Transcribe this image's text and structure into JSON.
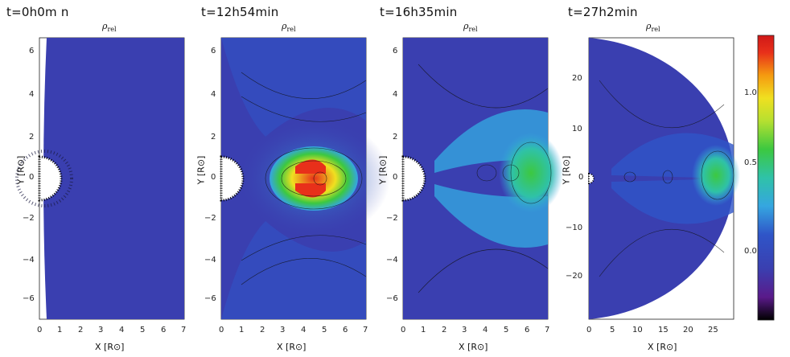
{
  "panels": [
    {
      "id": "p1",
      "time": "t=0h0m n",
      "title_symbol": "ρ",
      "title_sub": "rel",
      "xlabel": "X [R⊙]",
      "ylabel": "Y [R⊙]",
      "xticks": [
        "0",
        "1",
        "2",
        "3",
        "4",
        "5",
        "6",
        "7"
      ],
      "yticks": [
        "6",
        "4",
        "2",
        "0",
        "−2",
        "−4",
        "−6"
      ]
    },
    {
      "id": "p2",
      "time": "t=12h54min",
      "title_symbol": "ρ",
      "title_sub": "rel",
      "xlabel": "X [R⊙]",
      "ylabel": "Y [R⊙]",
      "xticks": [
        "0",
        "1",
        "2",
        "3",
        "4",
        "5",
        "6",
        "7"
      ],
      "yticks": [
        "6",
        "4",
        "2",
        "0",
        "−2",
        "−4",
        "−6"
      ]
    },
    {
      "id": "p3",
      "time": "t=16h35min",
      "title_symbol": "ρ",
      "title_sub": "rel",
      "xlabel": "X [R⊙]",
      "ylabel": "Y [R⊙]",
      "xticks": [
        "0",
        "1",
        "2",
        "3",
        "4",
        "5",
        "6",
        "7"
      ],
      "yticks": [
        "6",
        "4",
        "2",
        "0",
        "−2",
        "−4",
        "−6"
      ]
    },
    {
      "id": "p4",
      "time": "t=27h2min",
      "title_symbol": "ρ",
      "title_sub": "rel",
      "xlabel": "X [R⊙]",
      "ylabel": "Y [R⊙]",
      "xticks": [
        "0",
        "5",
        "10",
        "15",
        "20",
        "25"
      ],
      "yticks": [
        "20",
        "10",
        "0",
        "−10",
        "−20"
      ]
    }
  ],
  "colorbar": {
    "ticks": [
      "1.0",
      "0.5",
      "0.0"
    ],
    "colors": [
      "#000000",
      "#5a1a8a",
      "#3a3fb0",
      "#2f55c8",
      "#35a6e0",
      "#2fc2a8",
      "#3cc840",
      "#b6e030",
      "#f0e020",
      "#f59a10",
      "#e8301a",
      "#d01818"
    ]
  },
  "colors": {
    "background_blue": "#3a3fb0",
    "sun": "#ffffff"
  }
}
